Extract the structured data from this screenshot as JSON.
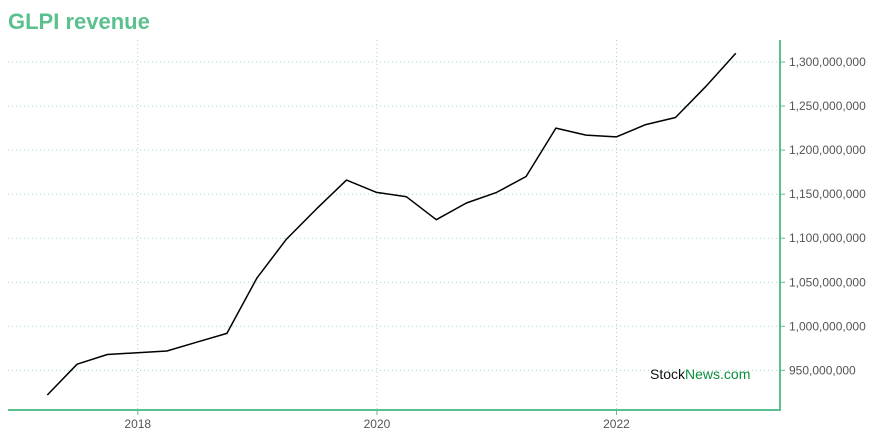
{
  "chart_data": {
    "type": "line",
    "title": "GLPI revenue",
    "watermark": {
      "part1": "Stock",
      "part2": "News",
      "part3": ".com"
    },
    "x": [
      "2017-03-31",
      "2017-06-30",
      "2017-09-30",
      "2017-12-31",
      "2018-03-31",
      "2018-06-30",
      "2018-09-30",
      "2018-12-31",
      "2019-03-31",
      "2019-06-30",
      "2019-09-30",
      "2019-12-31",
      "2020-03-31",
      "2020-06-30",
      "2020-09-30",
      "2020-12-31",
      "2021-03-31",
      "2021-06-30",
      "2021-09-30",
      "2021-12-31",
      "2022-03-31",
      "2022-06-30",
      "2022-09-30",
      "2022-12-31"
    ],
    "series": [
      {
        "values": [
          922000000,
          957000000,
          968000000,
          970000000,
          972000000,
          982000000,
          992000000,
          1055000000,
          1099000000,
          1133000000,
          1166000000,
          1152000000,
          1147000000,
          1121000000,
          1140000000,
          1152000000,
          1170000000,
          1225000000,
          1217000000,
          1215000000,
          1229000000,
          1237000000,
          1272000000,
          1310000000
        ]
      }
    ],
    "x_ticks": [
      "2018",
      "2020",
      "2022"
    ],
    "y_ticks": [
      "950,000,000",
      "1,000,000,000",
      "1,050,000,000",
      "1,100,000,000",
      "1,150,000,000",
      "1,200,000,000",
      "1,250,000,000",
      "1,300,000,000"
    ],
    "ylim": [
      905000000,
      1325000000
    ],
    "xlim": [
      "2016-12-01",
      "2023-05-15"
    ],
    "grid": true,
    "colors": {
      "title": "#5ac18e",
      "axis": "#5ac18e",
      "line": "#000000",
      "grid": "#9fd9c2",
      "watermark_dark": "#111111",
      "watermark_green": "#0a8f3c"
    }
  }
}
